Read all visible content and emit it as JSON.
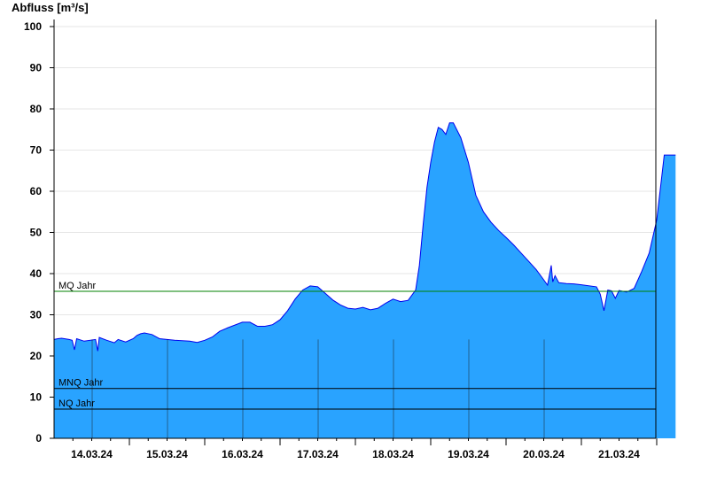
{
  "chart_data": {
    "type": "area",
    "title": "",
    "ylabel": "Abfluss [m³/s]",
    "xlabel": "",
    "ylim": [
      0,
      100
    ],
    "yticks": [
      0,
      10,
      20,
      30,
      40,
      50,
      60,
      70,
      80,
      90,
      100
    ],
    "grid": true,
    "x_start": "13.03.24 12:00",
    "x_end": "21.03.24 18:30",
    "day_ticks": [
      "14.03.24",
      "15.03.24",
      "16.03.24",
      "17.03.24",
      "18.03.24",
      "19.03.24",
      "20.03.24",
      "21.03.24"
    ],
    "colors": {
      "fill": "#29a3ff",
      "line": "#0000ee",
      "mq": "#008000",
      "mnq": "#000000",
      "nq": "#000000"
    },
    "reference_lines": [
      {
        "label": "MQ Jahr",
        "value": 35.7,
        "color": "#008000"
      },
      {
        "label": "MNQ Jahr",
        "value": 12.1,
        "color": "#000000"
      },
      {
        "label": "NQ Jahr",
        "value": 7.1,
        "color": "#000000"
      }
    ],
    "series": [
      {
        "x_days": [
          0,
          0.05,
          0.1,
          0.2,
          0.24,
          0.27,
          0.3,
          0.4,
          0.55,
          0.58,
          0.6,
          0.7,
          0.8,
          0.85,
          0.95,
          1.05,
          1.1,
          1.15,
          1.2,
          1.3,
          1.4,
          1.6,
          1.8,
          1.9,
          2.0,
          2.1,
          2.2,
          2.3,
          2.5,
          2.6,
          2.7,
          2.8,
          2.9,
          3.0,
          3.1,
          3.2,
          3.3,
          3.4,
          3.5,
          3.6,
          3.7,
          3.8,
          3.9,
          4.0,
          4.1,
          4.2,
          4.3,
          4.4,
          4.5,
          4.6,
          4.7,
          4.8,
          4.85,
          4.9,
          4.95,
          5.0,
          5.05,
          5.1,
          5.15,
          5.2,
          5.25,
          5.3,
          5.4,
          5.5,
          5.6,
          5.7,
          5.8,
          5.9,
          6.0,
          6.1,
          6.2,
          6.3,
          6.4,
          6.5,
          6.55,
          6.6,
          6.62,
          6.65,
          6.7,
          6.8,
          6.9,
          7.0,
          7.2,
          7.25,
          7.3,
          7.35,
          7.4,
          7.45,
          7.5,
          7.6,
          7.7,
          7.8,
          7.9,
          8.0,
          8.1,
          8.2,
          8.25
        ],
        "values": [
          24,
          24.2,
          24.3,
          24,
          23.8,
          21.5,
          24.2,
          23.6,
          24,
          21.2,
          24.5,
          23.8,
          23.2,
          24,
          23.4,
          24.2,
          25,
          25.4,
          25.6,
          25.2,
          24.2,
          23.8,
          23.6,
          23.3,
          23.8,
          24.6,
          26,
          26.8,
          28.2,
          28.2,
          27.2,
          27.2,
          27.6,
          28.8,
          31,
          33.8,
          36,
          37,
          36.8,
          35.2,
          33.6,
          32.4,
          31.6,
          31.4,
          31.8,
          31.2,
          31.6,
          32.8,
          33.8,
          33.2,
          33.5,
          36,
          42,
          52,
          61,
          67,
          72,
          75.5,
          75,
          73.8,
          76.6,
          76.6,
          73,
          67,
          59,
          55,
          52.5,
          50.5,
          48.8,
          47,
          45,
          43,
          41,
          38.5,
          37.2,
          42,
          38,
          39.5,
          37.8,
          37.6,
          37.5,
          37.3,
          36.8,
          35,
          31,
          36,
          35.8,
          34,
          35.9,
          35.5,
          36.4,
          40.5,
          45,
          53,
          68.8,
          68.8,
          68.8
        ]
      }
    ]
  }
}
